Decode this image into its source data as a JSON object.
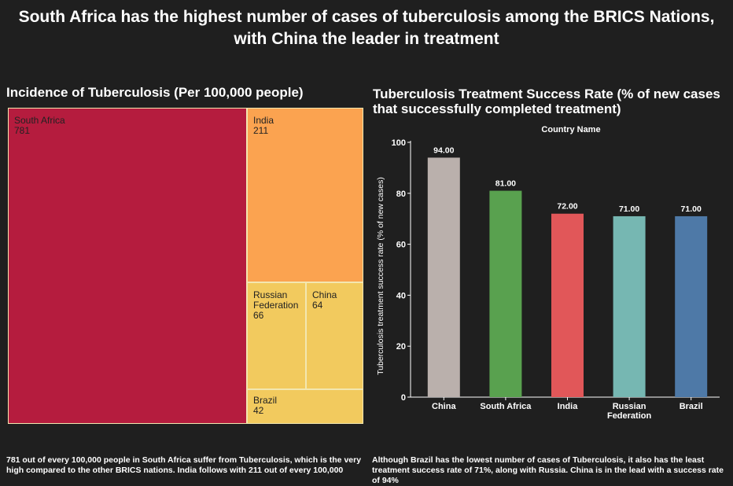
{
  "main_title": "South Africa has the highest number of cases of tuberculosis among the BRICS Nations, with China the leader in treatment",
  "treemap": {
    "title": "Incidence of Tuberculosis (Per 100,000 people)",
    "cells": [
      {
        "name": "South Africa",
        "value": "781",
        "color": "#b51c3e"
      },
      {
        "name": "India",
        "value": "211",
        "color": "#fba350"
      },
      {
        "name": "Russian Federation",
        "value": "66",
        "color": "#f2ca5e"
      },
      {
        "name": "China",
        "value": "64",
        "color": "#f2ca5e"
      },
      {
        "name": "Brazil",
        "value": "42",
        "color": "#f2ca5e"
      }
    ]
  },
  "chart_data": {
    "type": "bar",
    "title": "Tuberculosis Treatment Success Rate (% of new cases that successfully completed treatment)",
    "legend_title": "Country Name",
    "ylabel": "Tuberculosis treatment success rate (% of new cases)",
    "ylim": [
      0,
      100
    ],
    "yticks": [
      0,
      20,
      40,
      60,
      80,
      100
    ],
    "categories": [
      "China",
      "South Africa",
      "India",
      "Russian Federation",
      "Brazil"
    ],
    "category_lines": [
      [
        "China"
      ],
      [
        "South Africa"
      ],
      [
        "India"
      ],
      [
        "Russian",
        "Federation"
      ],
      [
        "Brazil"
      ]
    ],
    "values": [
      94,
      81,
      72,
      71,
      71
    ],
    "value_labels": [
      "94.00",
      "81.00",
      "72.00",
      "71.00",
      "71.00"
    ],
    "colors": [
      "#bab0ac",
      "#59a14f",
      "#e15759",
      "#76b7b2",
      "#4e79a7"
    ]
  },
  "captions": {
    "left": "781 out of every 100,000 people in South Africa suffer from Tuberculosis, which is the very high compared to the other BRICS nations. India follows with 211 out of every 100,000",
    "right": "Although Brazil has the lowest number of cases of Tuberculosis, it also has the least treatment success rate of 71%, along with Russia. China is in the lead with a success rate of 94%"
  }
}
